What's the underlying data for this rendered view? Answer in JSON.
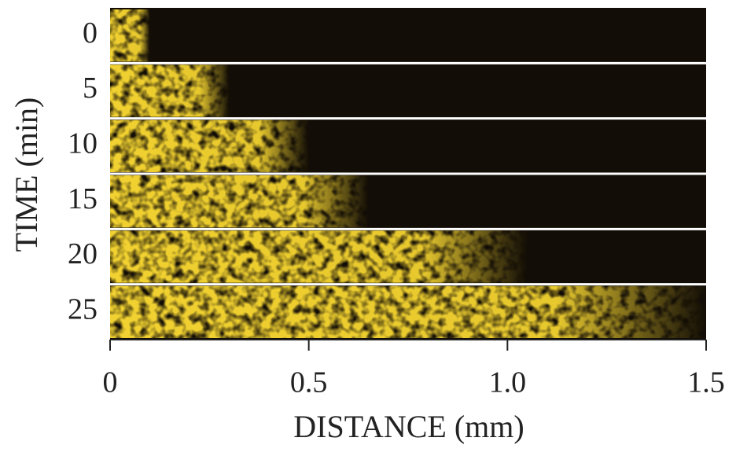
{
  "chart_data": {
    "type": "front-strips",
    "xlabel": "DISTANCE (mm)",
    "ylabel": "TIME (min)",
    "categories": [
      "0",
      "5",
      "10",
      "15",
      "20",
      "25"
    ],
    "values": [
      0.1,
      0.3,
      0.5,
      0.65,
      1.05,
      1.5
    ],
    "color": "#f2d230",
    "xlim": [
      0,
      1.5
    ],
    "xticks": [
      0,
      0.5,
      {
        "value": 1,
        "label": "1.0"
      },
      1.5
    ]
  }
}
